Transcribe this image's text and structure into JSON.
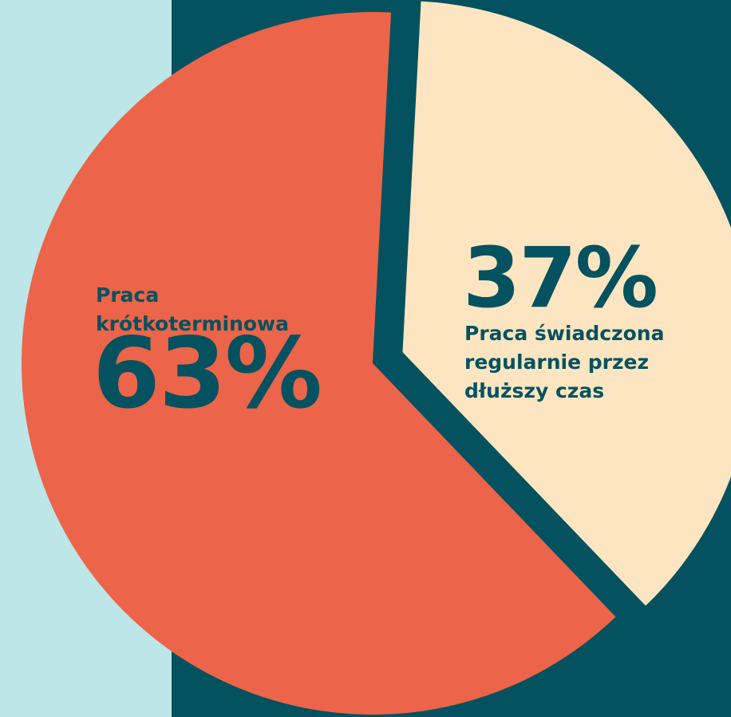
{
  "chart_data": {
    "type": "pie",
    "categories": [
      "Praca krótkoterminowa",
      "Praca świadczona regularnie przez dłuższy czas"
    ],
    "values": [
      63,
      37
    ],
    "value_labels": [
      "63%",
      "37%"
    ],
    "colors": [
      "#ec6449",
      "#fde5c1"
    ]
  }
}
